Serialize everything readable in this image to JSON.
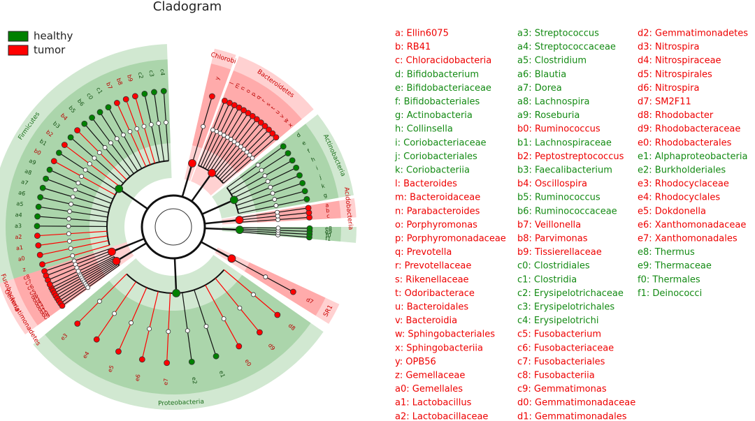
{
  "title": "Cladogram",
  "legend": [
    {
      "label": "healthy",
      "color": "#008000"
    },
    {
      "label": "tumor",
      "color": "#ff0000"
    }
  ],
  "clades": [
    {
      "label": "Firmicutes",
      "group": 0,
      "codes": [
        "c4",
        "c3",
        "c2",
        "b9",
        "b8",
        "b7",
        "c1",
        "c0",
        "b6",
        "b5",
        "b4",
        "b3",
        "b2",
        "b1",
        "b0",
        "a9",
        "a8",
        "a7",
        "a6",
        "a5",
        "a4",
        "a3",
        "a2",
        "a1",
        "a0",
        "z"
      ]
    },
    {
      "label": "Chlorobi",
      "group": 1,
      "codes": [
        "y"
      ]
    },
    {
      "label": "Bacteroidetes",
      "group": 1,
      "codes": [
        "x",
        "w",
        "v",
        "u",
        "t",
        "s",
        "r",
        "q",
        "p",
        "o",
        "n",
        "m",
        "l"
      ]
    },
    {
      "label": "Actinobacteria",
      "group": 0,
      "codes": [
        "g",
        "k",
        "j",
        "i",
        "h",
        "f",
        "e",
        "d"
      ]
    },
    {
      "label": "Acidobacteria",
      "group": 1,
      "codes": [
        "c",
        "b",
        "a"
      ]
    },
    {
      "label": null,
      "group": 0,
      "codes": [
        "f1",
        "f0",
        "e9",
        "e8"
      ]
    },
    {
      "label": "SR1",
      "group": 1,
      "codes": [
        "d7"
      ]
    },
    {
      "label": "Proteobacteria",
      "group": 0,
      "codes": [
        "e3",
        "e4",
        "e5",
        "e6",
        "e7",
        "e2",
        "e1",
        "e0",
        "d9",
        "d8"
      ]
    },
    {
      "label": "Gemmatimonadetes",
      "group": 1,
      "codes": [
        "d6",
        "d5",
        "d4",
        "d3",
        "d2",
        "d1",
        "d0",
        "c9"
      ]
    },
    {
      "label": "Fusobacteria",
      "group": 1,
      "codes": [
        "c8",
        "c7",
        "c6",
        "c5"
      ]
    }
  ],
  "taxa": [
    {
      "text": "a: Ellin6075",
      "group": 1
    },
    {
      "text": "b: RB41",
      "group": 1
    },
    {
      "text": "c: Chloracidobacteria",
      "group": 1
    },
    {
      "text": "d: Bifidobacterium",
      "group": 0
    },
    {
      "text": "e: Bifidobacteriaceae",
      "group": 0
    },
    {
      "text": "f: Bifidobacteriales",
      "group": 0
    },
    {
      "text": "g: Actinobacteria",
      "group": 0
    },
    {
      "text": "h: Collinsella",
      "group": 0
    },
    {
      "text": "i: Coriobacteriaceae",
      "group": 0
    },
    {
      "text": "j: Coriobacteriales",
      "group": 0
    },
    {
      "text": "k: Coriobacteriia",
      "group": 0
    },
    {
      "text": "l: Bacteroides",
      "group": 1
    },
    {
      "text": "m: Bacteroidaceae",
      "group": 1
    },
    {
      "text": "n: Parabacteroides",
      "group": 1
    },
    {
      "text": "o: Porphyromonas",
      "group": 1
    },
    {
      "text": "p: Porphyromonadaceae",
      "group": 1
    },
    {
      "text": "q: Prevotella",
      "group": 1
    },
    {
      "text": "r: Prevotellaceae",
      "group": 1
    },
    {
      "text": "s: Rikenellaceae",
      "group": 1
    },
    {
      "text": "t: Odoribacterace",
      "group": 1
    },
    {
      "text": "u: Bacteroidales",
      "group": 1
    },
    {
      "text": "v: Bacteroidia",
      "group": 1
    },
    {
      "text": "w: Sphingobacteriales",
      "group": 1
    },
    {
      "text": "x: Sphingobacteriia",
      "group": 1
    },
    {
      "text": "y: OPB56",
      "group": 1
    },
    {
      "text": "z: Gemellaceae",
      "group": 1
    },
    {
      "text": "a0: Gemellales",
      "group": 1
    },
    {
      "text": "a1: Lactobacillus",
      "group": 1
    },
    {
      "text": "a2: Lactobacillaceae",
      "group": 1
    },
    {
      "text": "a3: Streptococcus",
      "group": 0
    },
    {
      "text": "a4: Streptococcaceae",
      "group": 0
    },
    {
      "text": "a5: Clostridium",
      "group": 0
    },
    {
      "text": "a6: Blautia",
      "group": 0
    },
    {
      "text": "a7: Dorea",
      "group": 0
    },
    {
      "text": "a8: Lachnospira",
      "group": 0
    },
    {
      "text": "a9: Roseburia",
      "group": 0
    },
    {
      "text": "b0: Ruminococcus",
      "group": 1
    },
    {
      "text": "b1: Lachnospiraceae",
      "group": 0
    },
    {
      "text": "b2: Peptostreptococcus",
      "group": 1
    },
    {
      "text": "b3: Faecalibacterium",
      "group": 0
    },
    {
      "text": "b4: Oscillospira",
      "group": 1
    },
    {
      "text": "b5: Ruminococcus",
      "group": 0
    },
    {
      "text": "b6: Ruminococcaceae",
      "group": 0
    },
    {
      "text": "b7: Veillonella",
      "group": 1
    },
    {
      "text": "b8: Parvimonas",
      "group": 1
    },
    {
      "text": "b9: Tissierellaceae",
      "group": 1
    },
    {
      "text": "c0: Clostridiales",
      "group": 0
    },
    {
      "text": "c1: Clostridia",
      "group": 0
    },
    {
      "text": "c2: Erysipelotrichaceae",
      "group": 0
    },
    {
      "text": "c3: Erysipelotrichales",
      "group": 0
    },
    {
      "text": "c4: Erysipelotrichi",
      "group": 0
    },
    {
      "text": "c5: Fusobacterium",
      "group": 1
    },
    {
      "text": "c6: Fusobacteriaceae",
      "group": 1
    },
    {
      "text": "c7: Fusobacteriales",
      "group": 1
    },
    {
      "text": "c8: Fusobacteriia",
      "group": 1
    },
    {
      "text": "c9: Gemmatimonas",
      "group": 1
    },
    {
      "text": "d0: Gemmatimonadaceae",
      "group": 1
    },
    {
      "text": "d1: Gemmatimonadales",
      "group": 1
    },
    {
      "text": "d2: Gemmatimonadetes",
      "group": 1
    },
    {
      "text": "d3: Nitrospira",
      "group": 1
    },
    {
      "text": "d4: Nitrospiraceae",
      "group": 1
    },
    {
      "text": "d5: Nitrospirales",
      "group": 1
    },
    {
      "text": "d6: Nitrospira",
      "group": 1
    },
    {
      "text": "d7: SM2F11",
      "group": 1
    },
    {
      "text": "d8: Rhodobacter",
      "group": 1
    },
    {
      "text": "d9: Rhodobacteraceae",
      "group": 1
    },
    {
      "text": "e0: Rhodobacterales",
      "group": 1
    },
    {
      "text": "e1: Alphaproteobacteria",
      "group": 0
    },
    {
      "text": "e2: Burkholderiales",
      "group": 0
    },
    {
      "text": "e3: Rhodocyclaceae",
      "group": 1
    },
    {
      "text": "e4: Rhodocyclales",
      "group": 1
    },
    {
      "text": "e5: Dokdonella",
      "group": 1
    },
    {
      "text": "e6: Xanthomonadaceae",
      "group": 1
    },
    {
      "text": "e7: Xanthomonadales",
      "group": 1
    },
    {
      "text": "e8: Thermus",
      "group": 0
    },
    {
      "text": "e9: Thermaceae",
      "group": 0
    },
    {
      "text": "f0: Thermales",
      "group": 0
    },
    {
      "text": "f1: Deinococci",
      "group": 0
    }
  ]
}
